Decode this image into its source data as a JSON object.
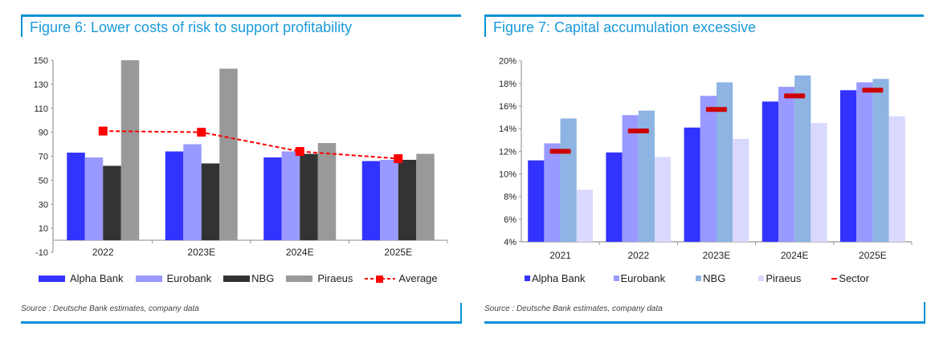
{
  "figures": [
    {
      "title": "Figure 6: Lower costs of risk to support profitability",
      "source": "Source : Deutsche Bank estimates, company data"
    },
    {
      "title": "Figure 7: Capital accumulation excessive",
      "source": "Source : Deutsche Bank estimates, company data"
    }
  ],
  "chart_data": [
    {
      "type": "bar",
      "title": "Figure 6: Lower costs of risk to support profitability",
      "xlabel": "",
      "ylabel": "",
      "categories": [
        "2022",
        "2023E",
        "2024E",
        "2025E"
      ],
      "ylim": [
        -10,
        150
      ],
      "yticks": [
        -10,
        10,
        30,
        50,
        70,
        90,
        110,
        130,
        150
      ],
      "ytick_labels": [
        "-10",
        "10",
        "30",
        "50",
        "70",
        "90",
        "110",
        "130",
        "150"
      ],
      "grid": false,
      "legend_position": "bottom",
      "series": [
        {
          "name": "Alpha Bank",
          "kind": "bar",
          "color": "#3333ff",
          "values": [
            73,
            74,
            69,
            66
          ]
        },
        {
          "name": "Eurobank",
          "kind": "bar",
          "color": "#9999ff",
          "values": [
            69,
            80,
            74,
            67
          ]
        },
        {
          "name": "NBG",
          "kind": "bar",
          "color": "#333333",
          "values": [
            62,
            64,
            72,
            67
          ]
        },
        {
          "name": "Piraeus",
          "kind": "bar",
          "color": "#999999",
          "values": [
            150,
            143,
            81,
            72
          ]
        },
        {
          "name": "Average",
          "kind": "line",
          "style": "dashed",
          "marker": "square",
          "color": "#ff0000",
          "values": [
            91,
            90,
            74,
            68
          ]
        }
      ]
    },
    {
      "type": "bar",
      "title": "Figure 7: Capital accumulation excessive",
      "xlabel": "",
      "ylabel": "",
      "categories": [
        "2021",
        "2022",
        "2023E",
        "2024E",
        "2025E"
      ],
      "ylim": [
        4,
        20
      ],
      "yticks": [
        4,
        6,
        8,
        10,
        12,
        14,
        16,
        18,
        20
      ],
      "ytick_labels": [
        "4%",
        "6%",
        "8%",
        "10%",
        "12%",
        "14%",
        "16%",
        "18%",
        "20%"
      ],
      "grid": false,
      "legend_position": "bottom",
      "series": [
        {
          "name": "Alpha Bank",
          "kind": "bar",
          "color": "#3333ff",
          "values": [
            11.2,
            11.9,
            14.1,
            16.4,
            17.4
          ]
        },
        {
          "name": "Eurobank",
          "kind": "bar",
          "color": "#9999ff",
          "values": [
            12.7,
            15.2,
            16.9,
            17.7,
            18.1
          ]
        },
        {
          "name": "NBG",
          "kind": "bar",
          "color": "#8db4e2",
          "values": [
            14.9,
            15.6,
            18.1,
            18.7,
            18.4
          ]
        },
        {
          "name": "Piraeus",
          "kind": "bar",
          "color": "#d9d9ff",
          "values": [
            8.6,
            11.5,
            13.1,
            14.5,
            15.1
          ]
        },
        {
          "name": "Sector",
          "kind": "marker",
          "marker": "dash",
          "color": "#cc0000",
          "values": [
            12.0,
            13.8,
            15.7,
            16.9,
            17.4
          ]
        }
      ]
    }
  ]
}
